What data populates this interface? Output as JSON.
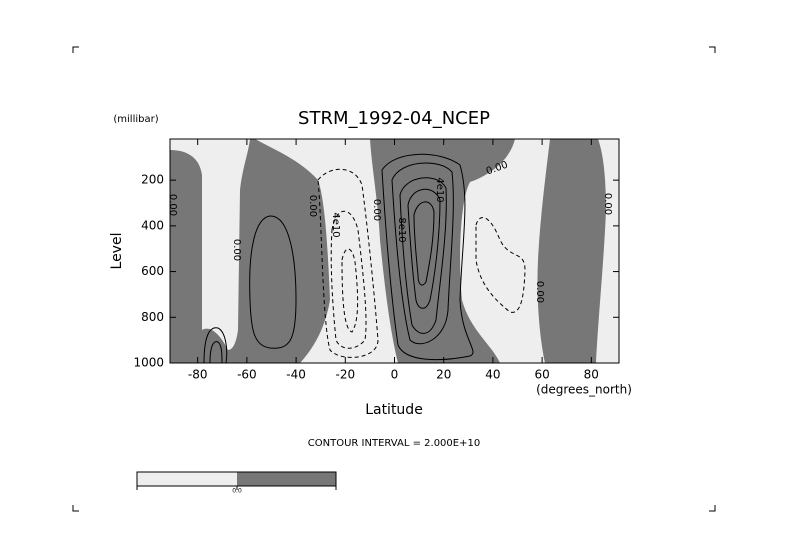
{
  "chart_data": {
    "type": "contour",
    "title": "STRM_1992-04_NCEP",
    "x_label": "Latitude",
    "x_units": "(degrees_north)",
    "y_label": "Level",
    "y_units": "(millibar)",
    "xlim": [
      -91.25,
      91.25
    ],
    "xticks": [
      -80,
      -60,
      -40,
      -20,
      0,
      20,
      40,
      60,
      80
    ],
    "ylim": [
      1000,
      20
    ],
    "yticks": [
      200,
      400,
      600,
      800,
      1000
    ],
    "colors": {
      "low": "#eeeeee",
      "high": "#777777"
    },
    "contour_interval": "CONTOUR INTERVAL = 2.000E+10",
    "contour_labels": [
      "0.00",
      "0.00",
      "0.00",
      "4e10",
      "0.00",
      "8e10",
      "4e10",
      "0.00",
      "0.00",
      "0.00"
    ],
    "colorbar_labels": [
      "0.0"
    ]
  }
}
